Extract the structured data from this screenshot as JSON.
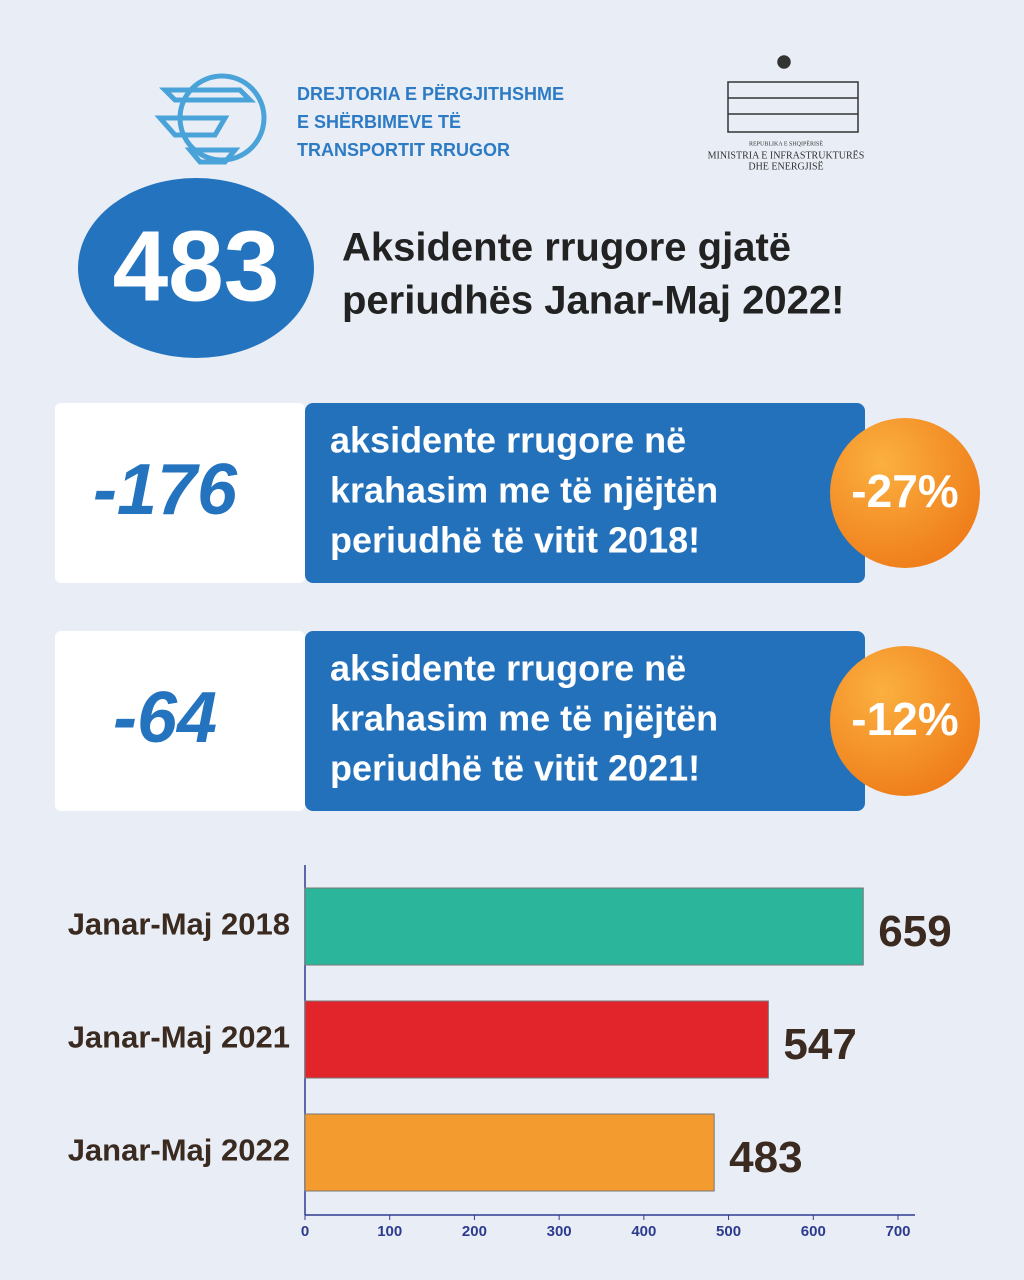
{
  "header": {
    "org_lines": [
      "DREJTORIA E PËRGJITHSHME",
      "E SHËRBIMEVE TË",
      "TRANSPORTIT RRUGOR"
    ],
    "ministry_lines": [
      "REPUBLIKA E SHQIPËRISË",
      "MINISTRIA E INFRASTRUKTURËS",
      "DHE ENERGJISË"
    ]
  },
  "headline": {
    "number": "483",
    "lines": [
      "Aksidente rrugore gjatë",
      "periudhës Janar-Maj 2022!"
    ]
  },
  "comparisons": [
    {
      "value": "-176",
      "lines": [
        "aksidente rrugore në",
        "krahasim me të njëjtën",
        "periudhë të vitit 2018!"
      ],
      "percent": "-27%"
    },
    {
      "value": "-64",
      "lines": [
        "aksidente rrugore në",
        "krahasim me të njëjtën",
        "periudhë të vitit 2021!"
      ],
      "percent": "-12%"
    }
  ],
  "chart_data": {
    "type": "bar",
    "orientation": "horizontal",
    "categories": [
      "Janar-Maj 2018",
      "Janar-Maj 2021",
      "Janar-Maj 2022"
    ],
    "values": [
      659,
      547,
      483
    ],
    "colors": [
      "#2bb59a",
      "#e2242b",
      "#f49b30"
    ],
    "xlim": [
      0,
      700
    ],
    "xticks": [
      0,
      100,
      200,
      300,
      400,
      500,
      600,
      700
    ]
  }
}
